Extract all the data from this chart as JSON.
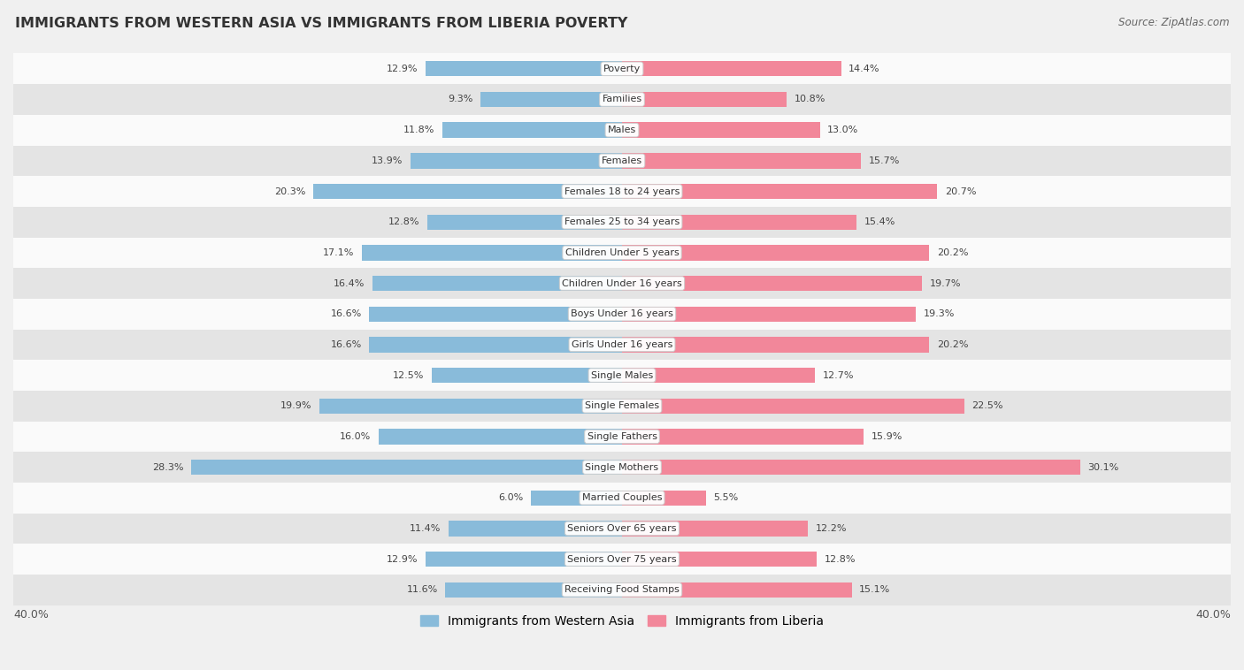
{
  "title": "IMMIGRANTS FROM WESTERN ASIA VS IMMIGRANTS FROM LIBERIA POVERTY",
  "source": "Source: ZipAtlas.com",
  "categories": [
    "Poverty",
    "Families",
    "Males",
    "Females",
    "Females 18 to 24 years",
    "Females 25 to 34 years",
    "Children Under 5 years",
    "Children Under 16 years",
    "Boys Under 16 years",
    "Girls Under 16 years",
    "Single Males",
    "Single Females",
    "Single Fathers",
    "Single Mothers",
    "Married Couples",
    "Seniors Over 65 years",
    "Seniors Over 75 years",
    "Receiving Food Stamps"
  ],
  "western_asia": [
    12.9,
    9.3,
    11.8,
    13.9,
    20.3,
    12.8,
    17.1,
    16.4,
    16.6,
    16.6,
    12.5,
    19.9,
    16.0,
    28.3,
    6.0,
    11.4,
    12.9,
    11.6
  ],
  "liberia": [
    14.4,
    10.8,
    13.0,
    15.7,
    20.7,
    15.4,
    20.2,
    19.7,
    19.3,
    20.2,
    12.7,
    22.5,
    15.9,
    30.1,
    5.5,
    12.2,
    12.8,
    15.1
  ],
  "blue_color": "#89BBDA",
  "pink_color": "#F2879A",
  "bg_color": "#F0F0F0",
  "row_bg_light": "#FAFAFA",
  "row_bg_dark": "#E4E4E4",
  "axis_limit": 40.0,
  "legend_label_blue": "Immigrants from Western Asia",
  "legend_label_pink": "Immigrants from Liberia"
}
